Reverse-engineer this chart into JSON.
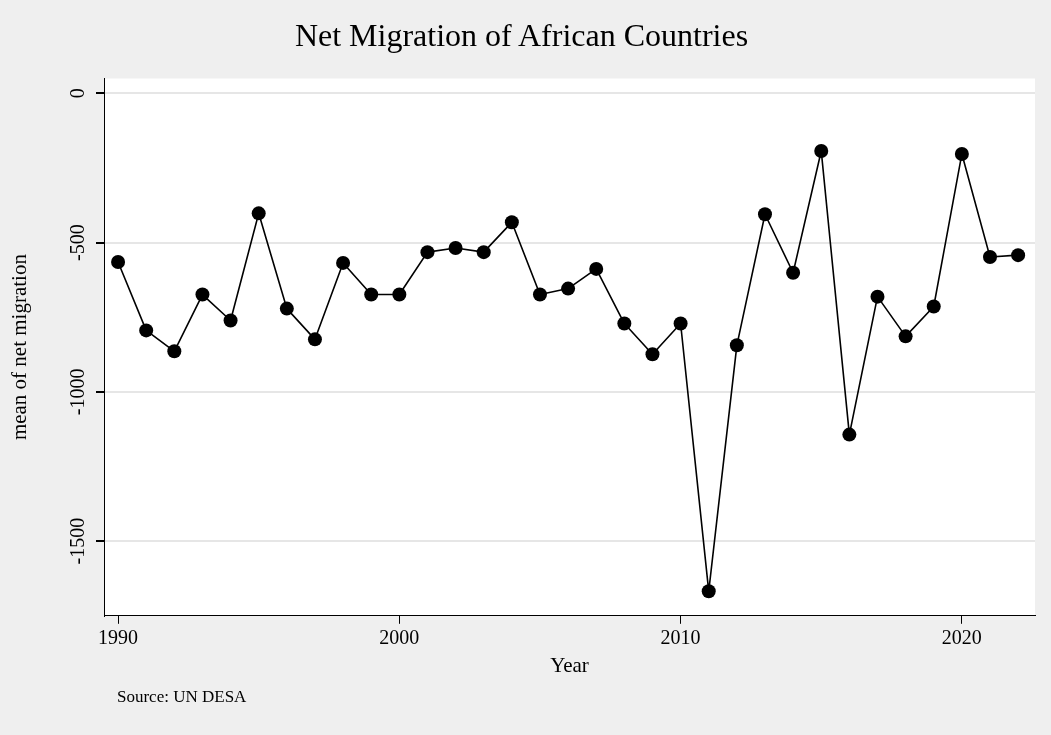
{
  "chart_data": {
    "type": "line",
    "title": "Net Migration of African Countries",
    "xlabel": "Year",
    "ylabel": "mean of net migration",
    "x": [
      1990,
      1991,
      1992,
      1993,
      1994,
      1995,
      1996,
      1997,
      1998,
      1999,
      2000,
      2001,
      2002,
      2003,
      2004,
      2005,
      2006,
      2007,
      2008,
      2009,
      2010,
      2011,
      2012,
      2013,
      2014,
      2015,
      2016,
      2017,
      2018,
      2019,
      2020,
      2021,
      2022
    ],
    "series": [
      {
        "color": "#000000",
        "values": [
          -565,
          -794,
          -864,
          -674,
          -761,
          -402,
          -721,
          -824,
          -568,
          -674,
          -674,
          -532,
          -518,
          -532,
          -432,
          -674,
          -654,
          -588,
          -771,
          -874,
          -771,
          -1668,
          -844,
          -405,
          -601,
          -193,
          -1143,
          -681,
          -814,
          -714,
          -203,
          -548,
          -542
        ]
      }
    ],
    "xlim": [
      1989.5,
      2022.6
    ],
    "xticks": [
      1990,
      2000,
      2010,
      2020
    ],
    "ylim": [
      -1750,
      50
    ],
    "yticks": [
      -1500,
      -1000,
      -500,
      0
    ],
    "grid": "y",
    "legend": false,
    "marker": "circle",
    "line_style": "solid",
    "annotations": [
      "Source: UN DESA"
    ]
  }
}
